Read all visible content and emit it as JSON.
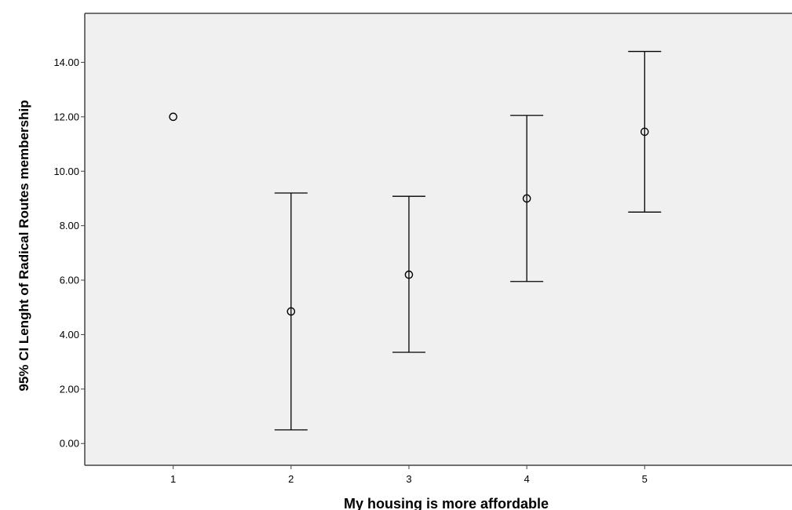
{
  "chart_data": {
    "type": "error-bar",
    "title": "",
    "xlabel": "My housing is more affordable",
    "ylabel": "95% CI Lenght of Radical Routes membership",
    "categories": [
      "1",
      "2",
      "3",
      "4",
      "5"
    ],
    "means": [
      12.0,
      4.85,
      6.2,
      9.0,
      11.45
    ],
    "ci_lower": [
      null,
      0.5,
      3.35,
      5.95,
      8.5
    ],
    "ci_upper": [
      null,
      9.2,
      9.08,
      12.05,
      14.4
    ],
    "yticks": [
      "0.00",
      "2.00",
      "4.00",
      "6.00",
      "8.00",
      "10.00",
      "12.00",
      "14.00"
    ],
    "ytick_values": [
      0,
      2,
      4,
      6,
      8,
      10,
      12,
      14
    ],
    "ylim": [
      -0.8,
      15.8
    ],
    "xlim": [
      0.25,
      6.25
    ],
    "grid": false,
    "colors": {
      "plot_background": "#f0f0f0",
      "axis": "#444444",
      "marker": "#000000"
    }
  }
}
